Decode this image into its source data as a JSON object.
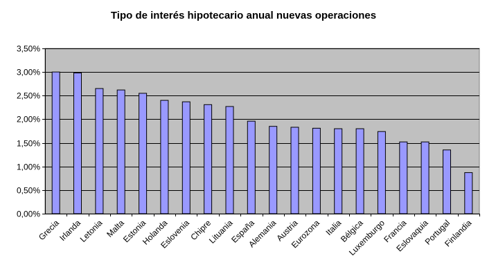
{
  "chart_data": {
    "type": "bar",
    "title": "Tipo de interés hipotecario anual nuevas operaciones",
    "xlabel": "",
    "ylabel": "",
    "categories": [
      "Grecia",
      "Irlanda",
      "Letonia",
      "Malta",
      "Estonia",
      "Holanda",
      "Eslovenia",
      "Chipre",
      "Lituania",
      "España",
      "Alemania",
      "Austria",
      "Eurozona",
      "Italia",
      "Bélgica",
      "Luxemburgo",
      "Francia",
      "Eslovaquia",
      "Portugal",
      "Finlandia"
    ],
    "values": [
      3.0,
      2.98,
      2.65,
      2.62,
      2.55,
      2.4,
      2.37,
      2.31,
      2.27,
      1.96,
      1.85,
      1.83,
      1.81,
      1.8,
      1.8,
      1.74,
      1.52,
      1.52,
      1.35,
      0.87
    ],
    "ylim": [
      0,
      3.5
    ],
    "yticks": [
      0,
      0.5,
      1.0,
      1.5,
      2.0,
      2.5,
      3.0,
      3.5
    ],
    "ytick_labels": [
      "0,00%",
      "0,50%",
      "1,00%",
      "1,50%",
      "2,00%",
      "2,50%",
      "3,00%",
      "3,50%"
    ],
    "grid": true,
    "colors": {
      "bar_fill": "#9999ff",
      "bar_stroke": "#000000",
      "plot_bg": "#c0c0c0",
      "grid": "#000000"
    }
  }
}
